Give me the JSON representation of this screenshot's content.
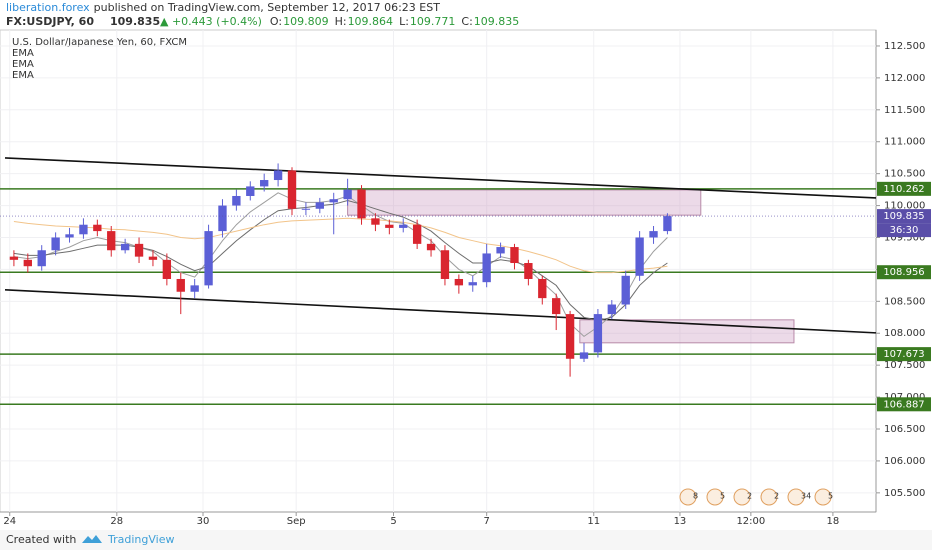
{
  "header": {
    "author": "liberation.forex",
    "published": "published on TradingView.com, September 12, 2017 06:23 EST",
    "symbol": "FX:USDJPY, 60",
    "last": "109.835",
    "change": "▲ +0.443 (+0.4%)",
    "ohlc": [
      {
        "key": "O:",
        "value": "109.809"
      },
      {
        "key": "H:",
        "value": "109.864"
      },
      {
        "key": "L:",
        "value": "109.771"
      },
      {
        "key": "C:",
        "value": "109.835"
      }
    ]
  },
  "footer": {
    "created": "Created with",
    "brand": "TradingView"
  },
  "chart_data": {
    "type": "candlestick",
    "title": "U.S. Dollar/Japanese Yen, 60, FXCM",
    "up_color": "#5b5fd6",
    "down_color": "#d9252f",
    "grid": true,
    "xlim": [
      -1,
      62
    ],
    "xticks": [
      {
        "value": -0.3,
        "label": "24"
      },
      {
        "value": 7.4,
        "label": "28"
      },
      {
        "value": 13.6,
        "label": "30"
      },
      {
        "value": 20.3,
        "label": "Sep"
      },
      {
        "value": 27.3,
        "label": "5"
      },
      {
        "value": 34,
        "label": "7"
      },
      {
        "value": 41.7,
        "label": "11"
      },
      {
        "value": 47.9,
        "label": "13"
      },
      {
        "value": 53,
        "label": "12:00"
      },
      {
        "value": 58.9,
        "label": "18"
      }
    ],
    "ylim": [
      105.2,
      112.75
    ],
    "yticks": [
      {
        "value": 112.5,
        "label": "112.500"
      },
      {
        "value": 112,
        "label": "112.000"
      },
      {
        "value": 111.5,
        "label": "111.500"
      },
      {
        "value": 111,
        "label": "111.000"
      },
      {
        "value": 110.5,
        "label": "110.500"
      },
      {
        "value": 110,
        "label": "110.000"
      },
      {
        "value": 109.5,
        "label": "109.500"
      },
      {
        "value": 109,
        "label": "109.000"
      },
      {
        "value": 108.5,
        "label": "108.500"
      },
      {
        "value": 108,
        "label": "108.000"
      },
      {
        "value": 107.5,
        "label": "107.500"
      },
      {
        "value": 107,
        "label": "107.000"
      },
      {
        "value": 106.5,
        "label": "106.500"
      },
      {
        "value": 106,
        "label": "106.000"
      },
      {
        "value": 105.5,
        "label": "105.500"
      }
    ],
    "open": [
      109.2,
      109.15,
      109.05,
      109.3,
      109.5,
      109.55,
      109.7,
      109.6,
      109.3,
      109.4,
      109.2,
      109.15,
      108.85,
      108.65,
      108.75,
      109.6,
      110.0,
      110.15,
      110.3,
      110.4,
      110.55,
      109.95,
      109.95,
      110.05,
      110.1,
      110.25,
      109.8,
      109.7,
      109.65,
      109.7,
      109.4,
      109.3,
      108.85,
      108.75,
      108.8,
      109.25,
      109.35,
      109.1,
      108.85,
      108.55,
      108.3,
      107.6,
      107.7,
      108.3,
      108.45,
      108.9,
      109.5,
      109.6
    ],
    "high": [
      109.3,
      109.25,
      109.38,
      109.58,
      109.65,
      109.8,
      109.78,
      109.68,
      109.48,
      109.5,
      109.3,
      109.25,
      108.95,
      108.85,
      109.7,
      110.1,
      110.25,
      110.38,
      110.5,
      110.66,
      110.6,
      110.05,
      110.12,
      110.2,
      110.42,
      110.32,
      109.88,
      109.78,
      109.8,
      109.78,
      109.48,
      109.38,
      108.92,
      108.9,
      109.4,
      109.42,
      109.4,
      109.15,
      108.9,
      108.62,
      108.35,
      107.85,
      108.38,
      108.52,
      108.98,
      109.6,
      109.68,
      109.88
    ],
    "low": [
      109.05,
      108.95,
      108.98,
      109.22,
      109.42,
      109.48,
      109.52,
      109.2,
      109.25,
      109.1,
      109.05,
      108.75,
      108.3,
      108.55,
      108.7,
      109.5,
      109.92,
      110.08,
      110.22,
      110.3,
      109.85,
      109.85,
      109.88,
      109.55,
      110.0,
      109.7,
      109.6,
      109.55,
      109.58,
      109.32,
      109.2,
      108.75,
      108.62,
      108.65,
      108.72,
      109.18,
      109.0,
      108.75,
      108.45,
      108.05,
      107.32,
      107.55,
      107.62,
      108.22,
      108.38,
      108.82,
      109.4,
      109.55
    ],
    "close": [
      109.15,
      109.05,
      109.3,
      109.5,
      109.55,
      109.7,
      109.6,
      109.3,
      109.4,
      109.2,
      109.15,
      108.85,
      108.65,
      108.75,
      109.6,
      110.0,
      110.15,
      110.3,
      110.4,
      110.55,
      109.95,
      109.95,
      110.05,
      110.1,
      110.25,
      109.8,
      109.7,
      109.65,
      109.7,
      109.4,
      109.3,
      108.85,
      108.75,
      108.8,
      109.25,
      109.35,
      109.1,
      108.85,
      108.55,
      108.3,
      107.6,
      107.7,
      108.3,
      108.45,
      108.9,
      109.5,
      109.6,
      109.835
    ],
    "series": [
      {
        "name": "EMA",
        "color": "#9e9e9e",
        "values": [
          109.2,
          109.17,
          109.2,
          109.28,
          109.35,
          109.45,
          109.5,
          109.45,
          109.42,
          109.35,
          109.28,
          109.1,
          108.95,
          108.88,
          109.15,
          109.45,
          109.7,
          109.9,
          110.05,
          110.2,
          110.1,
          110.05,
          110.05,
          110.08,
          110.15,
          110.0,
          109.85,
          109.75,
          109.72,
          109.58,
          109.45,
          109.2,
          109.0,
          108.9,
          109.05,
          109.2,
          109.15,
          109.0,
          108.8,
          108.6,
          108.15,
          107.95,
          108.1,
          108.28,
          108.6,
          109.0,
          109.28,
          109.5
        ]
      },
      {
        "name": "EMA",
        "color": "#6d6d6d",
        "values": [
          109.25,
          109.22,
          109.22,
          109.25,
          109.28,
          109.33,
          109.38,
          109.38,
          109.38,
          109.35,
          109.3,
          109.2,
          109.08,
          108.98,
          109.05,
          109.25,
          109.45,
          109.62,
          109.78,
          109.92,
          109.95,
          109.97,
          110.0,
          110.02,
          110.08,
          110.02,
          109.95,
          109.88,
          109.82,
          109.72,
          109.6,
          109.42,
          109.25,
          109.1,
          109.1,
          109.15,
          109.12,
          109.05,
          108.9,
          108.75,
          108.45,
          108.25,
          108.2,
          108.25,
          108.45,
          108.75,
          108.95,
          109.1
        ]
      },
      {
        "name": "EMA",
        "color": "#f2c48a",
        "values": [
          109.75,
          109.72,
          109.7,
          109.68,
          109.67,
          109.66,
          109.65,
          109.63,
          109.62,
          109.6,
          109.58,
          109.55,
          109.5,
          109.48,
          109.5,
          109.55,
          109.6,
          109.65,
          109.7,
          109.74,
          109.76,
          109.77,
          109.78,
          109.79,
          109.8,
          109.79,
          109.78,
          109.76,
          109.74,
          109.7,
          109.65,
          109.58,
          109.5,
          109.45,
          109.4,
          109.37,
          109.33,
          109.28,
          109.22,
          109.15,
          109.05,
          108.98,
          108.95,
          108.95,
          108.97,
          109.0,
          109.02,
          109.05
        ]
      }
    ],
    "levels": [
      110.262,
      108.956,
      107.673,
      106.887
    ],
    "level_color": "#3a7a20",
    "trendlines": [
      {
        "x": [
          -0.64,
          62
        ],
        "y": [
          110.746,
          110.12
        ]
      },
      {
        "x": [
          -0.64,
          62
        ],
        "y": [
          108.68,
          108.006
        ]
      }
    ],
    "zones": [
      {
        "x": [
          24.0,
          49.4
        ],
        "y": [
          110.245,
          109.85
        ]
      },
      {
        "x": [
          40.7,
          56.1
        ],
        "y": [
          108.21,
          107.85
        ]
      }
    ],
    "last": 109.835,
    "last_color": "#5a4ea8",
    "countdown": "36:30",
    "events": [
      "8",
      "5",
      "2",
      "2",
      "34",
      "5"
    ]
  }
}
